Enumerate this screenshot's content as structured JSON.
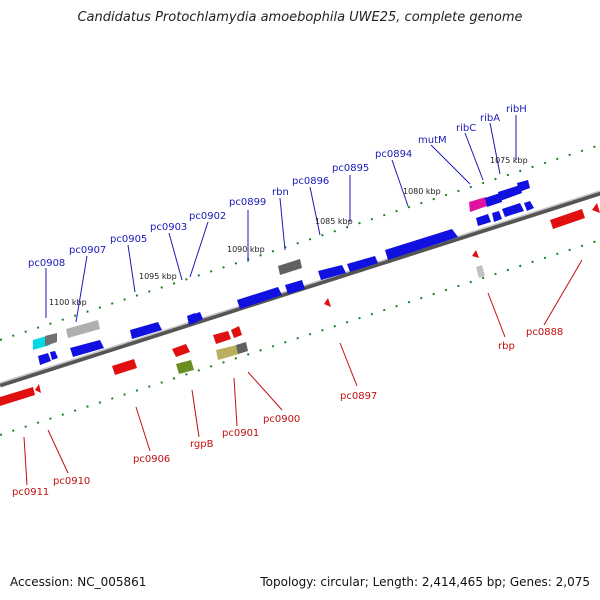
{
  "title": "Candidatus Protochlamydia amoebophila UWE25, complete genome",
  "footer": {
    "accession": "Accession: NC_005861",
    "summary": "Topology: circular; Length: 2,414,465 bp; Genes: 2,075"
  },
  "colors": {
    "forward_gene": "#1010e0",
    "reverse_gene": "#e01010",
    "backbone": "#808080",
    "tick": "#208020",
    "label_forward": "#1a1ab8",
    "label_reverse": "#c01010"
  },
  "kbp_ticks": [
    "1100 kbp",
    "1095 kbp",
    "1090 kbp",
    "1085 kbp",
    "1080 kbp",
    "1075 kbp"
  ],
  "labels_forward": [
    "pc0908",
    "pc0907",
    "pc0905",
    "pc0903",
    "pc0902",
    "pc0899",
    "rbn",
    "pc0896",
    "pc0895",
    "pc0894",
    "mutM",
    "ribC",
    "ribA",
    "ribH"
  ],
  "labels_reverse": [
    "pc0911",
    "pc0910",
    "pc0906",
    "rgpB",
    "pc0901",
    "pc0900",
    "pc0897",
    "rbp",
    "pc0888"
  ]
}
